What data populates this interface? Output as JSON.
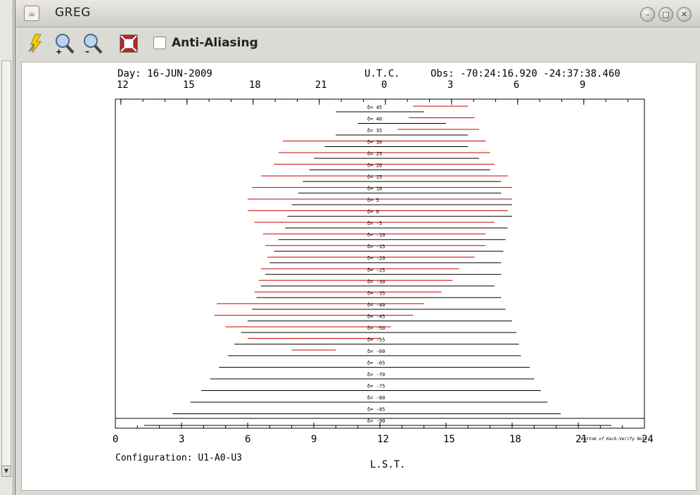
{
  "window": {
    "title": "GREG"
  },
  "toolbar": {
    "antialiasing_label": "Anti-Aliasing",
    "antialiasing_checked": false
  },
  "plot": {
    "day_label": "Day: 16-JUN-2009",
    "utc_label": "U.T.C.",
    "obs_label": "Obs: -70:24:16.920 -24:37:38.460",
    "top_ticks": [
      "12",
      "15",
      "18",
      "21",
      "0",
      "3",
      "6",
      "9"
    ],
    "bottom_ticks": [
      "0",
      "3",
      "6",
      "9",
      "12",
      "15",
      "18",
      "21",
      "24"
    ],
    "lst_label": "L.S.T.",
    "config_label": "Configuration: U1-A0-U3",
    "corner_note": "Bottom of Keck-Verify Note",
    "declinations": [
      "δ= 45",
      "δ= 40",
      "δ= 35",
      "δ= 30",
      "δ= 25",
      "δ= 20",
      "δ= 15",
      "δ= 10",
      "δ= 5",
      "δ= 0",
      "δ= -5",
      "δ= -10",
      "δ= -15",
      "δ= -20",
      "δ= -25",
      "δ= -30",
      "δ= -35",
      "δ= -40",
      "δ= -45",
      "δ= -50",
      "δ= -55",
      "δ= -60",
      "δ= -65",
      "δ= -70",
      "δ= -75",
      "δ= -80",
      "δ= -85",
      "δ= -90"
    ]
  },
  "colors": {
    "track": "#000000",
    "limit": "#cc0000",
    "accent": "#7d8ea8"
  }
}
